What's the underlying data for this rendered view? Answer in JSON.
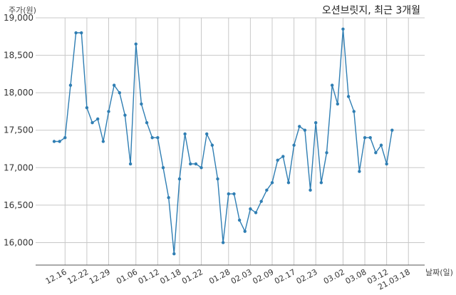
{
  "chart_data": {
    "type": "line",
    "title": "오션브릿지, 최근 3개월",
    "ylabel": "주가(원)",
    "xlabel": "날짜(일)",
    "ylim": [
      15700,
      19000
    ],
    "yticks": [
      16000,
      16500,
      17000,
      17500,
      18000,
      18500,
      19000
    ],
    "ytick_labels": [
      "16,000",
      "16,500",
      "17,000",
      "17,500",
      "18,000",
      "18,500",
      "19,000"
    ],
    "xtick_labels": [
      "12.16",
      "12.22",
      "12.29",
      "01.06",
      "01.12",
      "01.18",
      "01.22",
      "01.28",
      "02.03",
      "02.09",
      "02.17",
      "02.23",
      "03.02",
      "03.08",
      "03.12",
      "21.03.18"
    ],
    "xtick_index": [
      2,
      6,
      10,
      15,
      19,
      23,
      27,
      32,
      36,
      40,
      44,
      48,
      53,
      57,
      61,
      65
    ],
    "grid": true,
    "values": [
      17350,
      17350,
      17400,
      18100,
      18800,
      18800,
      17800,
      17600,
      17650,
      17350,
      17750,
      18100,
      18000,
      17700,
      17050,
      18650,
      17850,
      17600,
      17400,
      17400,
      17000,
      16600,
      15850,
      16850,
      17450,
      17050,
      17050,
      17000,
      17450,
      17300,
      16850,
      16000,
      16650,
      16650,
      16300,
      16150,
      16450,
      16400,
      16550,
      16700,
      16800,
      17100,
      17150,
      16800,
      17300,
      17550,
      17500,
      16700,
      17600,
      16800,
      17200,
      18100,
      17850,
      18850,
      17950,
      17750,
      16950,
      17400,
      17400,
      17200,
      17300,
      17050,
      17500
    ]
  }
}
